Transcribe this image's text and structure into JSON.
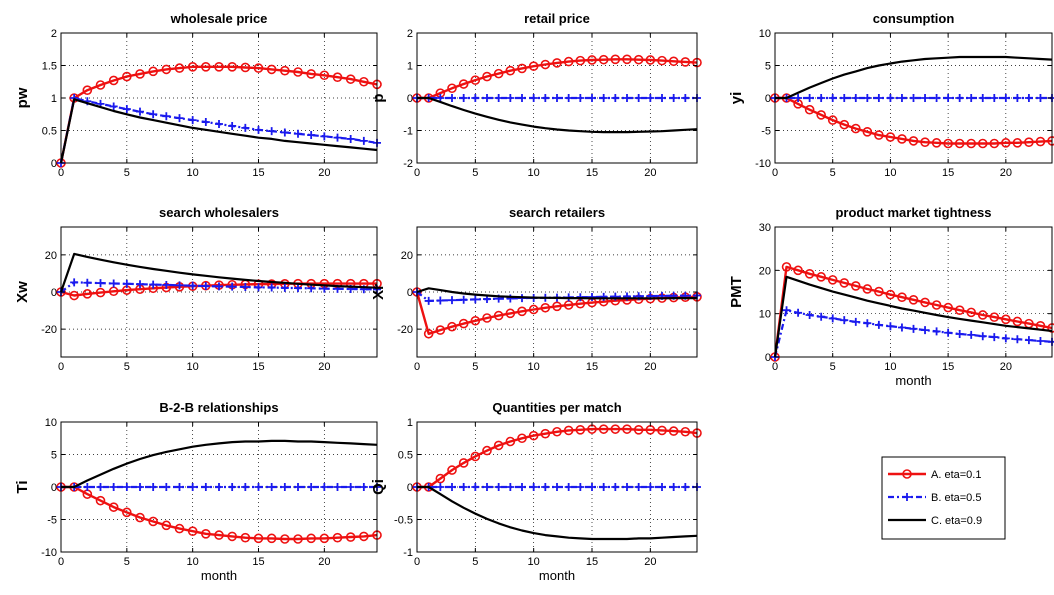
{
  "chart_data": [
    {
      "type": "line",
      "title": "wholesale price",
      "xlabel": "",
      "ylabel": "pw",
      "xlim": [
        0,
        24
      ],
      "ylim": [
        0,
        2
      ],
      "xticks": [
        "0",
        "5",
        "10",
        "15",
        "20"
      ],
      "yticks": [
        "0",
        "0.5",
        "1",
        "1.5",
        "2"
      ],
      "grid": true,
      "x": [
        0,
        1,
        2,
        3,
        4,
        5,
        6,
        7,
        8,
        9,
        10,
        11,
        12,
        13,
        14,
        15,
        16,
        17,
        18,
        19,
        20,
        21,
        22,
        23,
        24
      ],
      "series": [
        {
          "name": "A. eta=0.1",
          "values": [
            0,
            1.0,
            1.12,
            1.2,
            1.27,
            1.33,
            1.37,
            1.41,
            1.44,
            1.46,
            1.48,
            1.48,
            1.48,
            1.48,
            1.47,
            1.46,
            1.44,
            1.42,
            1.4,
            1.37,
            1.35,
            1.32,
            1.29,
            1.25,
            1.21
          ]
        },
        {
          "name": "B. eta=0.5",
          "values": [
            0,
            1.0,
            0.95,
            0.91,
            0.87,
            0.83,
            0.79,
            0.75,
            0.72,
            0.69,
            0.66,
            0.63,
            0.6,
            0.57,
            0.54,
            0.51,
            0.49,
            0.47,
            0.45,
            0.43,
            0.41,
            0.39,
            0.37,
            0.34,
            0.31
          ]
        },
        {
          "name": "C. eta=0.9",
          "values": [
            0,
            0.98,
            0.92,
            0.86,
            0.8,
            0.75,
            0.7,
            0.66,
            0.62,
            0.58,
            0.54,
            0.51,
            0.48,
            0.45,
            0.42,
            0.39,
            0.37,
            0.34,
            0.32,
            0.3,
            0.28,
            0.26,
            0.24,
            0.22,
            0.2
          ]
        }
      ]
    },
    {
      "type": "line",
      "title": "retail price",
      "xlabel": "",
      "ylabel": "p",
      "xlim": [
        0,
        24
      ],
      "ylim": [
        -2,
        2
      ],
      "xticks": [
        "0",
        "5",
        "10",
        "15",
        "20"
      ],
      "yticks": [
        "-2",
        "-1",
        "0",
        "1",
        "2"
      ],
      "grid": true,
      "x": [
        0,
        1,
        2,
        3,
        4,
        5,
        6,
        7,
        8,
        9,
        10,
        11,
        12,
        13,
        14,
        15,
        16,
        17,
        18,
        19,
        20,
        21,
        22,
        23,
        24
      ],
      "series": [
        {
          "name": "A. eta=0.1",
          "values": [
            0,
            0,
            0.15,
            0.3,
            0.43,
            0.55,
            0.66,
            0.75,
            0.84,
            0.91,
            0.98,
            1.03,
            1.08,
            1.12,
            1.15,
            1.17,
            1.18,
            1.19,
            1.19,
            1.18,
            1.17,
            1.15,
            1.13,
            1.11,
            1.09
          ]
        },
        {
          "name": "B. eta=0.5",
          "values": [
            0,
            0,
            0,
            0,
            0,
            0,
            0,
            0,
            0,
            0,
            0,
            0,
            0,
            0,
            0,
            0,
            0,
            0,
            0,
            0,
            0,
            0,
            0,
            0,
            0
          ]
        },
        {
          "name": "C. eta=0.9",
          "values": [
            0,
            0,
            -0.12,
            -0.25,
            -0.37,
            -0.48,
            -0.58,
            -0.67,
            -0.75,
            -0.82,
            -0.88,
            -0.93,
            -0.97,
            -1.0,
            -1.02,
            -1.04,
            -1.05,
            -1.05,
            -1.05,
            -1.04,
            -1.03,
            -1.02,
            -1.0,
            -0.98,
            -0.96
          ]
        }
      ]
    },
    {
      "type": "line",
      "title": "consumption",
      "xlabel": "",
      "ylabel": "yi",
      "xlim": [
        0,
        24
      ],
      "ylim": [
        -10,
        10
      ],
      "xticks": [
        "0",
        "5",
        "10",
        "15",
        "20"
      ],
      "yticks": [
        "-10",
        "-5",
        "0",
        "5",
        "10"
      ],
      "grid": true,
      "x": [
        0,
        1,
        2,
        3,
        4,
        5,
        6,
        7,
        8,
        9,
        10,
        11,
        12,
        13,
        14,
        15,
        16,
        17,
        18,
        19,
        20,
        21,
        22,
        23,
        24
      ],
      "series": [
        {
          "name": "A. eta=0.1",
          "values": [
            0,
            0,
            -0.9,
            -1.8,
            -2.6,
            -3.4,
            -4.1,
            -4.7,
            -5.2,
            -5.7,
            -6.0,
            -6.3,
            -6.6,
            -6.8,
            -6.9,
            -7.0,
            -7.0,
            -7.0,
            -7.0,
            -7.0,
            -6.9,
            -6.9,
            -6.8,
            -6.7,
            -6.6
          ]
        },
        {
          "name": "B. eta=0.5",
          "values": [
            0,
            0,
            0,
            0,
            0,
            0,
            0,
            0,
            0,
            0,
            0,
            0,
            0,
            0,
            0,
            0,
            0,
            0,
            0,
            0,
            0,
            0,
            0,
            0,
            0
          ]
        },
        {
          "name": "C. eta=0.9",
          "values": [
            0,
            0,
            0.8,
            1.6,
            2.3,
            3.0,
            3.6,
            4.1,
            4.6,
            5.0,
            5.3,
            5.6,
            5.8,
            6.0,
            6.1,
            6.2,
            6.3,
            6.3,
            6.3,
            6.3,
            6.3,
            6.2,
            6.1,
            6.0,
            5.9
          ]
        }
      ]
    },
    {
      "type": "line",
      "title": "search wholesalers",
      "xlabel": "",
      "ylabel": "Xw",
      "xlim": [
        0,
        24
      ],
      "ylim": [
        -35,
        35
      ],
      "xticks": [
        "0",
        "5",
        "10",
        "15",
        "20"
      ],
      "yticks": [
        "-20",
        "0",
        "20"
      ],
      "grid": true,
      "x": [
        0,
        1,
        2,
        3,
        4,
        5,
        6,
        7,
        8,
        9,
        10,
        11,
        12,
        13,
        14,
        15,
        16,
        17,
        18,
        19,
        20,
        21,
        22,
        23,
        24
      ],
      "series": [
        {
          "name": "A. eta=0.1",
          "values": [
            0,
            -1.9,
            -1.0,
            -0.3,
            0.4,
            1.0,
            1.5,
            2.0,
            2.4,
            2.8,
            3.1,
            3.4,
            3.7,
            3.9,
            4.1,
            4.2,
            4.3,
            4.4,
            4.5,
            4.5,
            4.5,
            4.5,
            4.5,
            4.5,
            4.5
          ]
        },
        {
          "name": "B. eta=0.5",
          "values": [
            0,
            5.2,
            5.0,
            4.8,
            4.6,
            4.4,
            4.2,
            4.0,
            3.8,
            3.6,
            3.4,
            3.2,
            3.0,
            2.9,
            2.7,
            2.5,
            2.4,
            2.2,
            2.1,
            2.0,
            1.8,
            1.7,
            1.6,
            1.5,
            1.4
          ]
        },
        {
          "name": "C. eta=0.9",
          "values": [
            0,
            20.5,
            18.9,
            17.4,
            16.0,
            14.7,
            13.5,
            12.4,
            11.4,
            10.4,
            9.5,
            8.7,
            7.9,
            7.2,
            6.5,
            5.9,
            5.4,
            4.9,
            4.4,
            4.0,
            3.6,
            3.2,
            2.9,
            2.6,
            2.3
          ]
        }
      ]
    },
    {
      "type": "line",
      "title": "search retailers",
      "xlabel": "",
      "ylabel": "Xr",
      "xlim": [
        0,
        24
      ],
      "ylim": [
        -35,
        35
      ],
      "xticks": [
        "0",
        "5",
        "10",
        "15",
        "20"
      ],
      "yticks": [
        "-20",
        "0",
        "20"
      ],
      "grid": true,
      "x": [
        0,
        1,
        2,
        3,
        4,
        5,
        6,
        7,
        8,
        9,
        10,
        11,
        12,
        13,
        14,
        15,
        16,
        17,
        18,
        19,
        20,
        21,
        22,
        23,
        24
      ],
      "series": [
        {
          "name": "A. eta=0.1",
          "values": [
            0,
            -22.5,
            -20.5,
            -18.7,
            -17.0,
            -15.5,
            -14.0,
            -12.7,
            -11.5,
            -10.4,
            -9.4,
            -8.5,
            -7.7,
            -7.0,
            -6.3,
            -5.7,
            -5.2,
            -4.7,
            -4.3,
            -3.9,
            -3.6,
            -3.3,
            -3.0,
            -2.8,
            -2.6
          ]
        },
        {
          "name": "B. eta=0.5",
          "values": [
            0,
            -4.8,
            -4.6,
            -4.4,
            -4.2,
            -4.0,
            -3.8,
            -3.6,
            -3.5,
            -3.3,
            -3.2,
            -3.1,
            -3.0,
            -2.9,
            -2.8,
            -2.7,
            -2.6,
            -2.5,
            -2.4,
            -2.3,
            -2.2,
            -2.1,
            -2.0,
            -2.0,
            -1.9
          ]
        },
        {
          "name": "C. eta=0.9",
          "values": [
            0,
            2.0,
            1.0,
            0.0,
            -0.8,
            -1.4,
            -1.9,
            -2.3,
            -2.6,
            -2.8,
            -3.0,
            -3.1,
            -3.2,
            -3.3,
            -3.3,
            -3.4,
            -3.4,
            -3.4,
            -3.4,
            -3.4,
            -3.4,
            -3.4,
            -3.3,
            -3.3,
            -3.3
          ]
        }
      ]
    },
    {
      "type": "line",
      "title": "product market tightness",
      "xlabel": "month",
      "ylabel": "PMT",
      "xlim": [
        0,
        24
      ],
      "ylim": [
        0,
        30
      ],
      "xticks": [
        "0",
        "5",
        "10",
        "15",
        "20"
      ],
      "yticks": [
        "0",
        "10",
        "20",
        "30"
      ],
      "grid": true,
      "x": [
        0,
        1,
        2,
        3,
        4,
        5,
        6,
        7,
        8,
        9,
        10,
        11,
        12,
        13,
        14,
        15,
        16,
        17,
        18,
        19,
        20,
        21,
        22,
        23,
        24
      ],
      "series": [
        {
          "name": "A. eta=0.1",
          "values": [
            0,
            20.8,
            20.0,
            19.2,
            18.5,
            17.8,
            17.1,
            16.4,
            15.7,
            15.1,
            14.4,
            13.8,
            13.2,
            12.6,
            12.0,
            11.4,
            10.8,
            10.3,
            9.7,
            9.2,
            8.7,
            8.2,
            7.7,
            7.2,
            6.7
          ]
        },
        {
          "name": "B. eta=0.5",
          "values": [
            0,
            10.8,
            10.2,
            9.7,
            9.3,
            8.9,
            8.5,
            8.1,
            7.8,
            7.4,
            7.1,
            6.8,
            6.5,
            6.2,
            5.9,
            5.6,
            5.3,
            5.1,
            4.8,
            4.6,
            4.3,
            4.1,
            3.9,
            3.7,
            3.5
          ]
        },
        {
          "name": "C. eta=0.9",
          "values": [
            0,
            18.5,
            17.6,
            16.7,
            15.9,
            15.1,
            14.4,
            13.7,
            13.0,
            12.4,
            11.8,
            11.2,
            10.7,
            10.2,
            9.7,
            9.2,
            8.8,
            8.4,
            8.0,
            7.6,
            7.2,
            6.9,
            6.6,
            6.3,
            6.0
          ]
        }
      ]
    },
    {
      "type": "line",
      "title": "B-2-B relationships",
      "xlabel": "month",
      "ylabel": "Ti",
      "xlim": [
        0,
        24
      ],
      "ylim": [
        -10,
        10
      ],
      "xticks": [
        "0",
        "5",
        "10",
        "15",
        "20"
      ],
      "yticks": [
        "-10",
        "-5",
        "0",
        "5",
        "10"
      ],
      "grid": true,
      "x": [
        0,
        1,
        2,
        3,
        4,
        5,
        6,
        7,
        8,
        9,
        10,
        11,
        12,
        13,
        14,
        15,
        16,
        17,
        18,
        19,
        20,
        21,
        22,
        23,
        24
      ],
      "series": [
        {
          "name": "A. eta=0.1",
          "values": [
            0,
            0,
            -1.1,
            -2.1,
            -3.1,
            -3.9,
            -4.7,
            -5.3,
            -5.9,
            -6.4,
            -6.8,
            -7.2,
            -7.4,
            -7.6,
            -7.8,
            -7.9,
            -7.9,
            -8.0,
            -8.0,
            -7.9,
            -7.9,
            -7.8,
            -7.7,
            -7.6,
            -7.4
          ]
        },
        {
          "name": "B. eta=0.5",
          "values": [
            0,
            0,
            0,
            0,
            0,
            0,
            0,
            0,
            0,
            0,
            0,
            0,
            0,
            0,
            0,
            0,
            0,
            0,
            0,
            0,
            0,
            0,
            0,
            0,
            0
          ]
        },
        {
          "name": "C. eta=0.9",
          "values": [
            0,
            0,
            1.0,
            1.9,
            2.8,
            3.6,
            4.3,
            4.9,
            5.4,
            5.8,
            6.2,
            6.5,
            6.7,
            6.9,
            7.0,
            7.0,
            7.1,
            7.1,
            7.0,
            7.0,
            6.9,
            6.8,
            6.7,
            6.6,
            6.5
          ]
        }
      ]
    },
    {
      "type": "line",
      "title": "Quantities per match",
      "xlabel": "month",
      "ylabel": "Qi",
      "xlim": [
        0,
        24
      ],
      "ylim": [
        -1,
        1
      ],
      "xticks": [
        "0",
        "5",
        "10",
        "15",
        "20"
      ],
      "yticks": [
        "-1",
        "-0.5",
        "0",
        "0.5",
        "1"
      ],
      "grid": true,
      "x": [
        0,
        1,
        2,
        3,
        4,
        5,
        6,
        7,
        8,
        9,
        10,
        11,
        12,
        13,
        14,
        15,
        16,
        17,
        18,
        19,
        20,
        21,
        22,
        23,
        24
      ],
      "series": [
        {
          "name": "A. eta=0.1",
          "values": [
            0,
            0,
            0.13,
            0.26,
            0.37,
            0.47,
            0.56,
            0.64,
            0.7,
            0.75,
            0.79,
            0.82,
            0.85,
            0.87,
            0.88,
            0.89,
            0.89,
            0.89,
            0.89,
            0.88,
            0.88,
            0.87,
            0.86,
            0.85,
            0.83
          ]
        },
        {
          "name": "B. eta=0.5",
          "values": [
            0,
            0,
            0,
            0,
            0,
            0,
            0,
            0,
            0,
            0,
            0,
            0,
            0,
            0,
            0,
            0,
            0,
            0,
            0,
            0,
            0,
            0,
            0,
            0,
            0
          ]
        },
        {
          "name": "C. eta=0.9",
          "values": [
            0,
            0,
            -0.11,
            -0.22,
            -0.32,
            -0.41,
            -0.49,
            -0.56,
            -0.62,
            -0.67,
            -0.71,
            -0.74,
            -0.76,
            -0.78,
            -0.79,
            -0.8,
            -0.8,
            -0.8,
            -0.8,
            -0.79,
            -0.79,
            -0.78,
            -0.77,
            -0.76,
            -0.75
          ]
        }
      ]
    }
  ],
  "legend": {
    "placement": "bottom-right",
    "entries": [
      {
        "label": "A. eta=0.1",
        "color": "#ee1111",
        "marker": "circle",
        "line": "solid"
      },
      {
        "label": "B. eta=0.5",
        "color": "#1a1aee",
        "marker": "plus",
        "line": "dash-dot"
      },
      {
        "label": "C. eta=0.9",
        "color": "#000000",
        "marker": "none",
        "line": "solid"
      }
    ]
  }
}
